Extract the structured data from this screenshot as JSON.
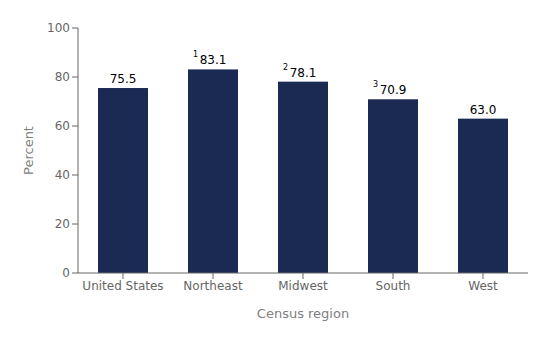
{
  "chart_data": {
    "type": "bar",
    "categories": [
      "United States",
      "Northeast",
      "Midwest",
      "South",
      "West"
    ],
    "values": [
      75.5,
      83.1,
      78.1,
      70.9,
      63.0
    ],
    "value_labels": [
      "75.5",
      "83.1",
      "78.1",
      "70.9",
      "63.0"
    ],
    "data_labels": true,
    "annotations": [
      {
        "category": "Northeast",
        "text": "1"
      },
      {
        "category": "Midwest",
        "text": "2"
      },
      {
        "category": "South",
        "text": "3"
      }
    ],
    "color": "#1b2a52",
    "xlabel": "Census region",
    "ylabel": "Percent",
    "ylim": [
      0,
      100
    ],
    "yticks": [
      0,
      20,
      40,
      60,
      80,
      100
    ],
    "grid": false
  }
}
